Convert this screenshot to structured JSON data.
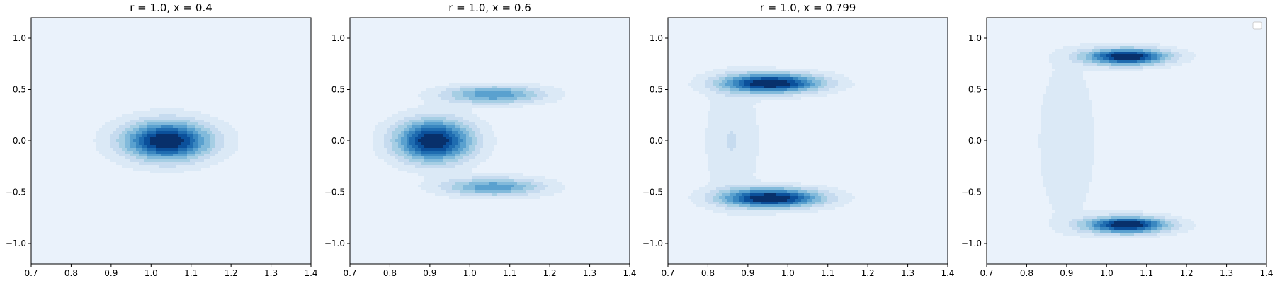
{
  "chart_data": [
    {
      "type": "contour",
      "title": "r = 1.0, x = 0.4",
      "xlim": [
        0.7,
        1.4
      ],
      "ylim": [
        -1.2,
        1.2
      ],
      "x_ticks": [
        "0.7",
        "0.8",
        "0.9",
        "1.0",
        "1.1",
        "1.2",
        "1.3",
        "1.4"
      ],
      "y_ticks": [
        "−1.0",
        "−0.5",
        "0.0",
        "0.5",
        "1.0"
      ],
      "colormap": "Blues",
      "peaks": [
        {
          "x": 1.04,
          "y": 0.0,
          "sx": 0.075,
          "sy": 0.13,
          "w": 1.0
        }
      ],
      "background": 0.045,
      "legend": false
    },
    {
      "type": "contour",
      "title": "r = 1.0, x = 0.6",
      "xlim": [
        0.7,
        1.4
      ],
      "ylim": [
        -1.2,
        1.2
      ],
      "x_ticks": [
        "0.7",
        "0.8",
        "0.9",
        "1.0",
        "1.1",
        "1.2",
        "1.3",
        "1.4"
      ],
      "y_ticks": [
        "−1.0",
        "−0.5",
        "0.0",
        "0.5",
        "1.0"
      ],
      "colormap": "Blues",
      "peaks": [
        {
          "x": 0.91,
          "y": 0.0,
          "sx": 0.065,
          "sy": 0.14,
          "w": 1.0
        },
        {
          "x": 1.06,
          "y": 0.45,
          "sx": 0.085,
          "sy": 0.06,
          "w": 0.55
        },
        {
          "x": 1.06,
          "y": -0.45,
          "sx": 0.085,
          "sy": 0.06,
          "w": 0.55
        }
      ],
      "background": 0.045,
      "legend": false
    },
    {
      "type": "contour",
      "title": "r = 1.0, x = 0.799",
      "xlim": [
        0.7,
        1.4
      ],
      "ylim": [
        -1.2,
        1.2
      ],
      "x_ticks": [
        "0.7",
        "0.8",
        "0.9",
        "1.0",
        "1.1",
        "1.2",
        "1.3",
        "1.4"
      ],
      "y_ticks": [
        "−1.0",
        "−0.5",
        "0.0",
        "0.5",
        "1.0"
      ],
      "colormap": "Blues",
      "peaks": [
        {
          "x": 0.96,
          "y": 0.56,
          "sx": 0.085,
          "sy": 0.065,
          "w": 1.0
        },
        {
          "x": 0.96,
          "y": -0.56,
          "sx": 0.085,
          "sy": 0.065,
          "w": 1.0
        },
        {
          "x": 0.86,
          "y": 0.0,
          "sx": 0.045,
          "sy": 0.4,
          "w": 0.16
        }
      ],
      "background": 0.045,
      "legend": false
    },
    {
      "type": "contour",
      "title": "",
      "xlim": [
        0.7,
        1.4
      ],
      "ylim": [
        -1.2,
        1.2
      ],
      "x_ticks": [
        "0.7",
        "0.8",
        "0.9",
        "1.0",
        "1.1",
        "1.2",
        "1.3",
        "1.4"
      ],
      "y_ticks": [
        "−1.0",
        "−0.5",
        "0.0",
        "0.5",
        "1.0"
      ],
      "colormap": "Blues",
      "peaks": [
        {
          "x": 1.05,
          "y": 0.82,
          "sx": 0.07,
          "sy": 0.055,
          "w": 1.0
        },
        {
          "x": 1.05,
          "y": -0.82,
          "sx": 0.07,
          "sy": 0.055,
          "w": 1.0
        },
        {
          "x": 0.9,
          "y": 0.0,
          "sx": 0.05,
          "sy": 0.55,
          "w": 0.13
        }
      ],
      "background": 0.05,
      "legend": true,
      "legend_position": "upper right"
    }
  ],
  "colors": {
    "levels": [
      "#f7fbff",
      "#eaf2fb",
      "#dbe9f6",
      "#c6dbef",
      "#a6cee4",
      "#82badb",
      "#5aa1cf",
      "#3a87c0",
      "#1f6cb0",
      "#0b509b",
      "#08306b"
    ]
  }
}
